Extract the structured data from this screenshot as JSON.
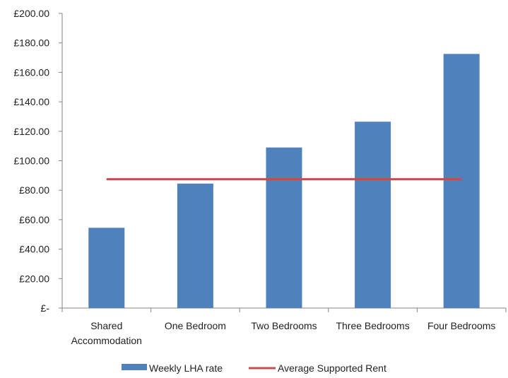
{
  "chart_data": {
    "type": "bar",
    "categories": [
      [
        "Shared",
        "Accommodation"
      ],
      [
        "One Bedroom"
      ],
      [
        "Two Bedrooms"
      ],
      [
        "Three Bedrooms"
      ],
      [
        "Four Bedrooms"
      ]
    ],
    "series": [
      {
        "name": "Weekly LHA rate",
        "type": "bar",
        "color": "#4F81BD",
        "values": [
          54.5,
          84.5,
          109,
          126.5,
          172.5
        ]
      },
      {
        "name": "Average Supported Rent",
        "type": "line",
        "color": "#C0504D",
        "values": [
          87.5,
          87.5,
          87.5,
          87.5,
          87.5
        ]
      }
    ],
    "y_ticks": [
      {
        "value": 0,
        "label": "£-"
      },
      {
        "value": 20,
        "label": "£20.00"
      },
      {
        "value": 40,
        "label": "£40.00"
      },
      {
        "value": 60,
        "label": "£60.00"
      },
      {
        "value": 80,
        "label": "£80.00"
      },
      {
        "value": 100,
        "label": "£100.00"
      },
      {
        "value": 120,
        "label": "£120.00"
      },
      {
        "value": 140,
        "label": "£140.00"
      },
      {
        "value": 160,
        "label": "£160.00"
      },
      {
        "value": 180,
        "label": "£180.00"
      },
      {
        "value": 200,
        "label": "£200.00"
      }
    ],
    "ylim": [
      0,
      200
    ],
    "title": "",
    "xlabel": "",
    "ylabel": "",
    "grid": false,
    "legend_position": "bottom"
  }
}
